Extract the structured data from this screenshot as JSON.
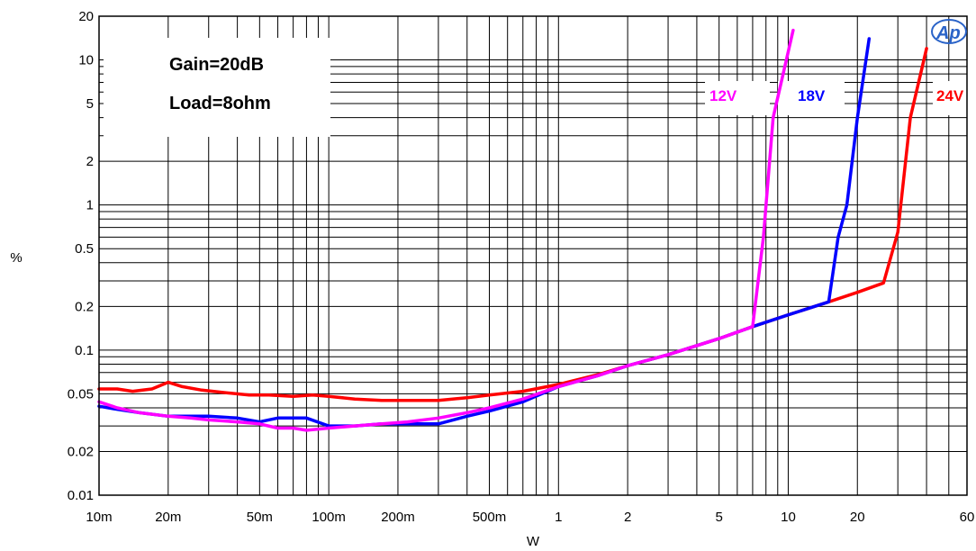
{
  "chart_data": {
    "type": "line",
    "xscale": "log",
    "yscale": "log",
    "xlabel": "W",
    "ylabel": "%",
    "xlim": [
      0.01,
      60
    ],
    "ylim": [
      0.01,
      20
    ],
    "x_ticks": [
      {
        "value": 0.01,
        "label": "10m"
      },
      {
        "value": 0.02,
        "label": "20m"
      },
      {
        "value": 0.05,
        "label": "50m"
      },
      {
        "value": 0.1,
        "label": "100m"
      },
      {
        "value": 0.2,
        "label": "200m"
      },
      {
        "value": 0.5,
        "label": "500m"
      },
      {
        "value": 1,
        "label": "1"
      },
      {
        "value": 2,
        "label": "2"
      },
      {
        "value": 5,
        "label": "5"
      },
      {
        "value": 10,
        "label": "10"
      },
      {
        "value": 20,
        "label": "20"
      },
      {
        "value": 60,
        "label": "60"
      }
    ],
    "y_ticks": [
      {
        "value": 0.01,
        "label": "0.01"
      },
      {
        "value": 0.02,
        "label": "0.02"
      },
      {
        "value": 0.05,
        "label": "0.05"
      },
      {
        "value": 0.1,
        "label": "0.1"
      },
      {
        "value": 0.2,
        "label": "0.2"
      },
      {
        "value": 0.5,
        "label": "0.5"
      },
      {
        "value": 1,
        "label": "1"
      },
      {
        "value": 2,
        "label": "2"
      },
      {
        "value": 5,
        "label": "5"
      },
      {
        "value": 10,
        "label": "10"
      },
      {
        "value": 20,
        "label": "20"
      }
    ],
    "grid": true,
    "annotations": [
      "Gain=20dB",
      "Load=8ohm"
    ],
    "logo": "Ap",
    "series": [
      {
        "name": "24V",
        "color": "#ff0000",
        "points": [
          [
            0.01,
            0.054
          ],
          [
            0.012,
            0.054
          ],
          [
            0.014,
            0.052
          ],
          [
            0.017,
            0.054
          ],
          [
            0.02,
            0.06
          ],
          [
            0.023,
            0.056
          ],
          [
            0.028,
            0.053
          ],
          [
            0.035,
            0.051
          ],
          [
            0.045,
            0.049
          ],
          [
            0.055,
            0.049
          ],
          [
            0.07,
            0.048
          ],
          [
            0.085,
            0.049
          ],
          [
            0.1,
            0.048
          ],
          [
            0.13,
            0.046
          ],
          [
            0.17,
            0.045
          ],
          [
            0.22,
            0.045
          ],
          [
            0.3,
            0.045
          ],
          [
            0.4,
            0.047
          ],
          [
            0.5,
            0.049
          ],
          [
            0.7,
            0.052
          ],
          [
            1,
            0.058
          ],
          [
            1.5,
            0.068
          ],
          [
            2,
            0.078
          ],
          [
            3,
            0.093
          ],
          [
            5,
            0.12
          ],
          [
            7,
            0.145
          ],
          [
            10,
            0.175
          ],
          [
            15,
            0.215
          ],
          [
            20,
            0.25
          ],
          [
            26,
            0.29
          ],
          [
            30,
            0.65
          ],
          [
            34,
            4
          ],
          [
            40,
            12
          ]
        ]
      },
      {
        "name": "18V",
        "color": "#0000ff",
        "points": [
          [
            0.01,
            0.041
          ],
          [
            0.012,
            0.039
          ],
          [
            0.015,
            0.037
          ],
          [
            0.02,
            0.035
          ],
          [
            0.025,
            0.035
          ],
          [
            0.03,
            0.035
          ],
          [
            0.04,
            0.034
          ],
          [
            0.05,
            0.032
          ],
          [
            0.06,
            0.034
          ],
          [
            0.07,
            0.034
          ],
          [
            0.08,
            0.034
          ],
          [
            0.1,
            0.03
          ],
          [
            0.13,
            0.03
          ],
          [
            0.17,
            0.031
          ],
          [
            0.22,
            0.031
          ],
          [
            0.3,
            0.031
          ],
          [
            0.4,
            0.035
          ],
          [
            0.5,
            0.038
          ],
          [
            0.7,
            0.044
          ],
          [
            1,
            0.056
          ],
          [
            1.5,
            0.067
          ],
          [
            2,
            0.078
          ],
          [
            3,
            0.093
          ],
          [
            5,
            0.12
          ],
          [
            7,
            0.145
          ],
          [
            10,
            0.175
          ],
          [
            15,
            0.215
          ],
          [
            16.5,
            0.6
          ],
          [
            18,
            1
          ],
          [
            20,
            4
          ],
          [
            22.5,
            14
          ]
        ]
      },
      {
        "name": "12V",
        "color": "#ff00ff",
        "points": [
          [
            0.01,
            0.044
          ],
          [
            0.012,
            0.04
          ],
          [
            0.015,
            0.037
          ],
          [
            0.02,
            0.035
          ],
          [
            0.025,
            0.034
          ],
          [
            0.03,
            0.033
          ],
          [
            0.04,
            0.032
          ],
          [
            0.05,
            0.031
          ],
          [
            0.06,
            0.029
          ],
          [
            0.07,
            0.029
          ],
          [
            0.08,
            0.028
          ],
          [
            0.1,
            0.029
          ],
          [
            0.13,
            0.03
          ],
          [
            0.17,
            0.031
          ],
          [
            0.22,
            0.032
          ],
          [
            0.3,
            0.034
          ],
          [
            0.4,
            0.037
          ],
          [
            0.5,
            0.04
          ],
          [
            0.7,
            0.046
          ],
          [
            1,
            0.056
          ],
          [
            1.5,
            0.067
          ],
          [
            2,
            0.078
          ],
          [
            3,
            0.093
          ],
          [
            5,
            0.12
          ],
          [
            7,
            0.145
          ],
          [
            7.8,
            0.6
          ],
          [
            8.6,
            4
          ],
          [
            9.5,
            8
          ],
          [
            10.5,
            16
          ]
        ]
      }
    ]
  }
}
